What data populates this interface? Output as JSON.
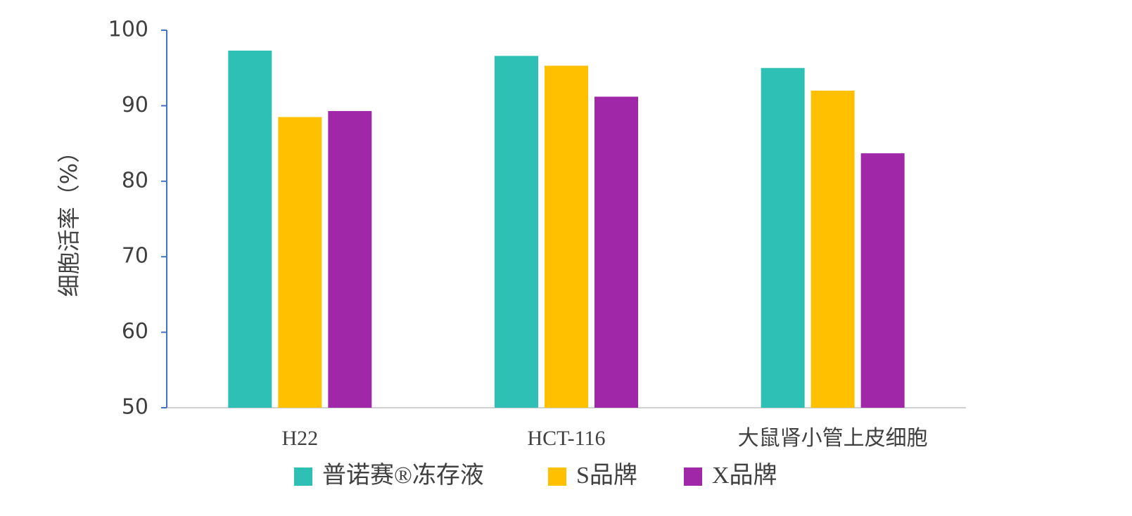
{
  "chart_data": {
    "type": "bar",
    "y_label": "细胞活率（%）",
    "categories": [
      "H22",
      "HCT-116",
      "大鼠肾小管上皮细胞"
    ],
    "series": [
      {
        "name": "普诺赛®冻存液",
        "color": "#2ec0b4",
        "values": [
          97.3,
          96.6,
          95.0
        ]
      },
      {
        "name": "S品牌",
        "color": "#ffc000",
        "values": [
          88.5,
          95.3,
          92.0
        ]
      },
      {
        "name": "X品牌",
        "color": "#a028a8",
        "values": [
          89.3,
          91.2,
          83.7
        ]
      }
    ],
    "ylim": [
      50,
      100
    ],
    "yticks": [
      50,
      60,
      70,
      80,
      90,
      100
    ],
    "grid": false,
    "legend": "bottom"
  }
}
